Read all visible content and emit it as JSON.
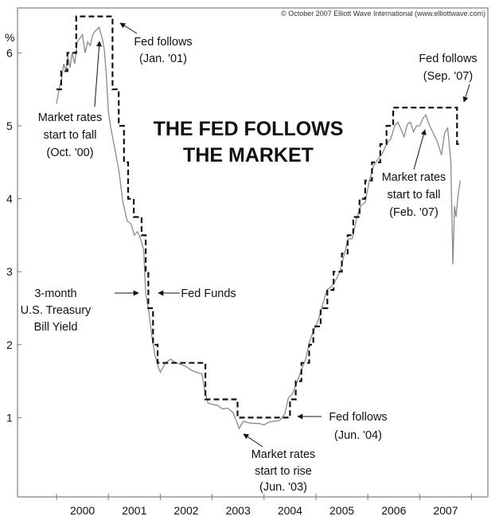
{
  "chart_data": {
    "type": "line",
    "title": [
      "THE FED FOLLOWS",
      "THE MARKET"
    ],
    "copyright": "© October 2007 Elliott Wave International (www.elliottwave.com)",
    "ylabel": "%",
    "ylim": [
      -0.1,
      6.7
    ],
    "xlim": [
      2000,
      2008
    ],
    "y_ticks": [
      "1",
      "2",
      "3",
      "4",
      "5",
      "6"
    ],
    "x_tick_labels": [
      "2000",
      "2001",
      "2002",
      "2003",
      "2004",
      "2005",
      "2006",
      "2007"
    ],
    "grid": false,
    "colors": {
      "fed_funds": "#111111",
      "tbill": "#8a8a8a",
      "axis": "#999999"
    },
    "series": [
      {
        "name": "Fed Funds",
        "style": "dashed-step",
        "points": [
          [
            2000.0,
            5.5
          ],
          [
            2000.09,
            5.75
          ],
          [
            2000.21,
            6.0
          ],
          [
            2000.38,
            6.5
          ],
          [
            2001.08,
            5.5
          ],
          [
            2001.2,
            5.0
          ],
          [
            2001.3,
            4.5
          ],
          [
            2001.38,
            4.0
          ],
          [
            2001.49,
            3.75
          ],
          [
            2001.64,
            3.5
          ],
          [
            2001.72,
            3.0
          ],
          [
            2001.77,
            2.5
          ],
          [
            2001.86,
            2.0
          ],
          [
            2001.95,
            1.75
          ],
          [
            2002.87,
            1.25
          ],
          [
            2003.49,
            1.0
          ],
          [
            2004.5,
            1.25
          ],
          [
            2004.61,
            1.5
          ],
          [
            2004.72,
            1.75
          ],
          [
            2004.87,
            2.0
          ],
          [
            2004.95,
            2.25
          ],
          [
            2005.09,
            2.5
          ],
          [
            2005.22,
            2.75
          ],
          [
            2005.34,
            3.0
          ],
          [
            2005.5,
            3.25
          ],
          [
            2005.61,
            3.5
          ],
          [
            2005.72,
            3.75
          ],
          [
            2005.84,
            4.0
          ],
          [
            2005.95,
            4.25
          ],
          [
            2006.08,
            4.5
          ],
          [
            2006.24,
            4.75
          ],
          [
            2006.36,
            5.0
          ],
          [
            2006.49,
            5.25
          ],
          [
            2007.72,
            4.75
          ],
          [
            2007.8,
            4.75
          ]
        ]
      },
      {
        "name": "3-month U.S. Treasury Bill Yield",
        "style": "solid",
        "points": [
          [
            2000.0,
            5.3
          ],
          [
            2000.05,
            5.5
          ],
          [
            2000.1,
            5.65
          ],
          [
            2000.14,
            5.85
          ],
          [
            2000.18,
            5.75
          ],
          [
            2000.22,
            5.95
          ],
          [
            2000.26,
            5.8
          ],
          [
            2000.3,
            6.0
          ],
          [
            2000.35,
            5.85
          ],
          [
            2000.4,
            6.15
          ],
          [
            2000.45,
            6.2
          ],
          [
            2000.5,
            6.25
          ],
          [
            2000.55,
            6.0
          ],
          [
            2000.6,
            6.15
          ],
          [
            2000.65,
            6.1
          ],
          [
            2000.7,
            6.25
          ],
          [
            2000.75,
            6.3
          ],
          [
            2000.82,
            6.35
          ],
          [
            2000.88,
            6.2
          ],
          [
            2000.92,
            6.05
          ],
          [
            2000.96,
            5.7
          ],
          [
            2001.0,
            5.2
          ],
          [
            2001.04,
            5.0
          ],
          [
            2001.12,
            4.7
          ],
          [
            2001.2,
            4.4
          ],
          [
            2001.28,
            3.95
          ],
          [
            2001.36,
            3.7
          ],
          [
            2001.44,
            3.65
          ],
          [
            2001.5,
            3.5
          ],
          [
            2001.56,
            3.55
          ],
          [
            2001.62,
            3.45
          ],
          [
            2001.68,
            3.3
          ],
          [
            2001.72,
            2.7
          ],
          [
            2001.78,
            2.45
          ],
          [
            2001.84,
            2.1
          ],
          [
            2001.9,
            1.85
          ],
          [
            2001.96,
            1.7
          ],
          [
            2002.0,
            1.62
          ],
          [
            2002.1,
            1.75
          ],
          [
            2002.2,
            1.8
          ],
          [
            2002.3,
            1.75
          ],
          [
            2002.4,
            1.73
          ],
          [
            2002.5,
            1.7
          ],
          [
            2002.6,
            1.65
          ],
          [
            2002.7,
            1.62
          ],
          [
            2002.8,
            1.6
          ],
          [
            2002.86,
            1.35
          ],
          [
            2002.92,
            1.2
          ],
          [
            2003.0,
            1.18
          ],
          [
            2003.1,
            1.17
          ],
          [
            2003.2,
            1.12
          ],
          [
            2003.3,
            1.13
          ],
          [
            2003.4,
            1.07
          ],
          [
            2003.47,
            0.95
          ],
          [
            2003.52,
            0.85
          ],
          [
            2003.6,
            0.95
          ],
          [
            2003.7,
            0.93
          ],
          [
            2003.8,
            0.92
          ],
          [
            2003.9,
            0.92
          ],
          [
            2004.0,
            0.9
          ],
          [
            2004.1,
            0.94
          ],
          [
            2004.2,
            0.95
          ],
          [
            2004.3,
            0.96
          ],
          [
            2004.4,
            1.05
          ],
          [
            2004.47,
            1.27
          ],
          [
            2004.55,
            1.33
          ],
          [
            2004.63,
            1.48
          ],
          [
            2004.72,
            1.65
          ],
          [
            2004.8,
            1.8
          ],
          [
            2004.88,
            2.05
          ],
          [
            2004.96,
            2.2
          ],
          [
            2005.05,
            2.35
          ],
          [
            2005.13,
            2.55
          ],
          [
            2005.21,
            2.75
          ],
          [
            2005.3,
            2.8
          ],
          [
            2005.38,
            2.88
          ],
          [
            2005.46,
            3.0
          ],
          [
            2005.54,
            3.22
          ],
          [
            2005.62,
            3.45
          ],
          [
            2005.7,
            3.45
          ],
          [
            2005.78,
            3.72
          ],
          [
            2005.86,
            3.9
          ],
          [
            2005.95,
            3.95
          ],
          [
            2006.03,
            4.25
          ],
          [
            2006.11,
            4.45
          ],
          [
            2006.2,
            4.55
          ],
          [
            2006.28,
            4.62
          ],
          [
            2006.36,
            4.75
          ],
          [
            2006.44,
            4.82
          ],
          [
            2006.52,
            5.0
          ],
          [
            2006.58,
            5.05
          ],
          [
            2006.64,
            4.95
          ],
          [
            2006.7,
            4.85
          ],
          [
            2006.76,
            5.02
          ],
          [
            2006.82,
            5.05
          ],
          [
            2006.88,
            4.92
          ],
          [
            2006.94,
            5.0
          ],
          [
            2007.0,
            5.0
          ],
          [
            2007.06,
            5.1
          ],
          [
            2007.12,
            5.15
          ],
          [
            2007.18,
            5.02
          ],
          [
            2007.26,
            4.9
          ],
          [
            2007.34,
            4.78
          ],
          [
            2007.42,
            4.6
          ],
          [
            2007.48,
            4.9
          ],
          [
            2007.54,
            4.97
          ],
          [
            2007.6,
            4.5
          ],
          [
            2007.64,
            3.1
          ],
          [
            2007.67,
            3.9
          ],
          [
            2007.7,
            3.75
          ],
          [
            2007.74,
            4.05
          ],
          [
            2007.78,
            4.25
          ]
        ]
      }
    ],
    "annotations": {
      "fed_follows_jan01": [
        "Fed follows",
        "(Jan. '01)"
      ],
      "market_fall_oct00": [
        "Market rates",
        "start to fall",
        "(Oct. '00)"
      ],
      "fed_follows_sep07": [
        "Fed follows",
        "(Sep. '07)"
      ],
      "market_fall_feb07": [
        "Market rates",
        "start to fall",
        "(Feb. '07)"
      ],
      "tbill_label": [
        "3-month",
        "U.S. Treasury",
        "Bill Yield"
      ],
      "fedfunds_label": "Fed Funds",
      "fed_follows_jun04": [
        "Fed follows",
        "(Jun. '04)"
      ],
      "market_rise_jun03": [
        "Market rates",
        "start to rise",
        "(Jun. '03)"
      ]
    }
  }
}
